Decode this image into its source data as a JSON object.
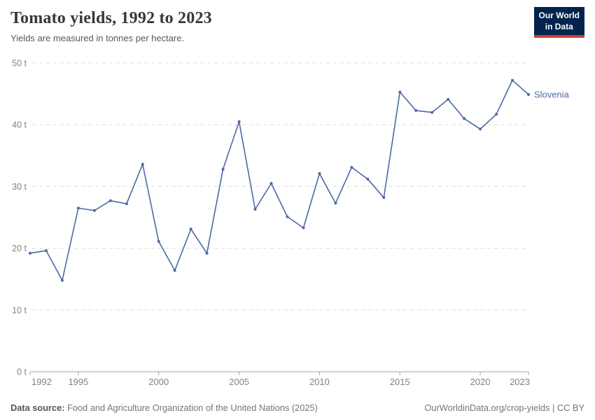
{
  "header": {
    "title": "Tomato yields, 1992 to 2023",
    "subtitle": "Yields are measured in tonnes per hectare.",
    "logo_line1": "Our World",
    "logo_line2": "in Data"
  },
  "chart_data": {
    "type": "line",
    "title": "Tomato yields, 1992 to 2023",
    "ylabel": "tonnes per hectare",
    "unit": "t",
    "grid": "dashed-horizontal",
    "legend_position": "end-of-line-label",
    "xlim": [
      1992,
      2023
    ],
    "ylim": [
      0,
      50
    ],
    "x": [
      1992,
      1993,
      1994,
      1995,
      1996,
      1997,
      1998,
      1999,
      2000,
      2001,
      2002,
      2003,
      2004,
      2005,
      2006,
      2007,
      2008,
      2009,
      2010,
      2011,
      2012,
      2013,
      2014,
      2015,
      2016,
      2017,
      2018,
      2019,
      2020,
      2021,
      2022,
      2023
    ],
    "series": [
      {
        "name": "Slovenia",
        "color": "#4c69a7",
        "values": [
          19.2,
          19.6,
          14.8,
          26.5,
          26.1,
          27.7,
          27.2,
          33.6,
          21.1,
          16.4,
          23.1,
          19.2,
          32.8,
          40.5,
          26.3,
          30.5,
          25.1,
          23.3,
          32.1,
          27.3,
          33.1,
          31.2,
          28.2,
          45.3,
          42.3,
          42.0,
          44.1,
          41.0,
          39.3,
          41.7,
          47.2,
          44.9
        ]
      }
    ],
    "xticks": [
      1992,
      1995,
      2000,
      2005,
      2010,
      2015,
      2020,
      2023
    ],
    "xtick_labels": [
      "1992",
      "1995",
      "2000",
      "2005",
      "2010",
      "2015",
      "2020",
      "2023"
    ],
    "yticks": [
      0,
      10,
      20,
      30,
      40,
      50
    ],
    "ytick_labels": [
      "0 t",
      "10 t",
      "20 t",
      "30 t",
      "40 t",
      "50 t"
    ]
  },
  "colors": {
    "line": "#4c69a7",
    "grid": "#dddddd",
    "axis": "#a5a5a5",
    "tick_text": "#828282",
    "logo_bg": "#02234d",
    "logo_accent": "#cf3a32"
  },
  "footer": {
    "source_label": "Data source:",
    "source_text": "Food and Agriculture Organization of the United Nations (2025)",
    "credit": "OurWorldinData.org/crop-yields | CC BY"
  }
}
